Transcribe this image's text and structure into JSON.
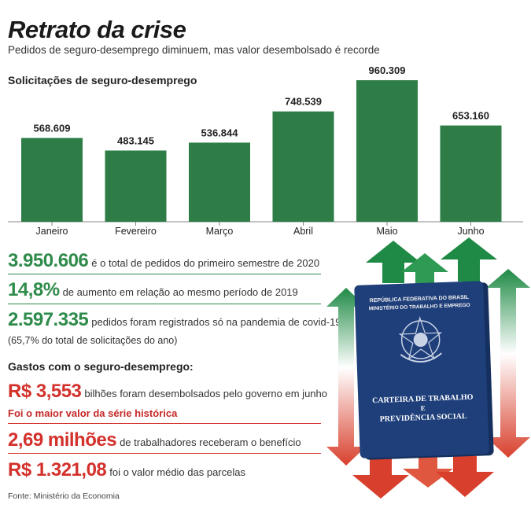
{
  "header": {
    "title": "Retrato da crise",
    "subtitle": "Pedidos de seguro-desemprego diminuem, mas valor desembolsado é recorde"
  },
  "chart_data": {
    "type": "bar",
    "title": "Solicitações de seguro-desemprego",
    "categories": [
      "Janeiro",
      "Fevereiro",
      "Março",
      "Abril",
      "Maio",
      "Junho"
    ],
    "values": [
      568609,
      483145,
      536844,
      748539,
      960309,
      653160
    ],
    "data_labels": [
      "568.609",
      "483.145",
      "536.844",
      "748.539",
      "960.309",
      "653.160"
    ],
    "ylim": [
      0,
      960309
    ],
    "bar_color": "#2e7d47"
  },
  "stats": {
    "total": {
      "value": "3.950.606",
      "text": "é o total de pedidos do primeiro semestre de 2020"
    },
    "increase": {
      "value": "14,8%",
      "text": "de aumento em relação ao mesmo período de 2019"
    },
    "pandemic": {
      "value": "2.597.335",
      "text": "pedidos foram registrados só na pandemia de covid-19",
      "note": "(65,7% do total de solicitações do ano)"
    }
  },
  "spending": {
    "heading": "Gastos com o seguro-desemprego:",
    "disbursed": {
      "value": "R$ 3,553",
      "text": "bilhões foram desembolsados pelo governo em junho",
      "highlight": "Foi o maior valor da série histórica"
    },
    "workers": {
      "value": "2,69 milhões",
      "text": "de trabalhadores receberam o benefício"
    },
    "average": {
      "value": "R$ 1.321,08",
      "text": "foi o valor médio das parcelas"
    }
  },
  "booklet": {
    "top_line1": "REPÚBLICA FEDERATIVA DO BRASIL",
    "top_line2": "MINISTÉRIO DO TRABALHO E EMPREGO",
    "title_line1": "CARTEIRA DE TRABALHO",
    "title_line2": "E",
    "title_line3": "PREVIDÊNCIA SOCIAL"
  },
  "source": "Fonte: Ministério da Economia",
  "colors": {
    "green": "#2e8b4a",
    "red": "#d3312b",
    "navy": "#1f3f7a"
  }
}
